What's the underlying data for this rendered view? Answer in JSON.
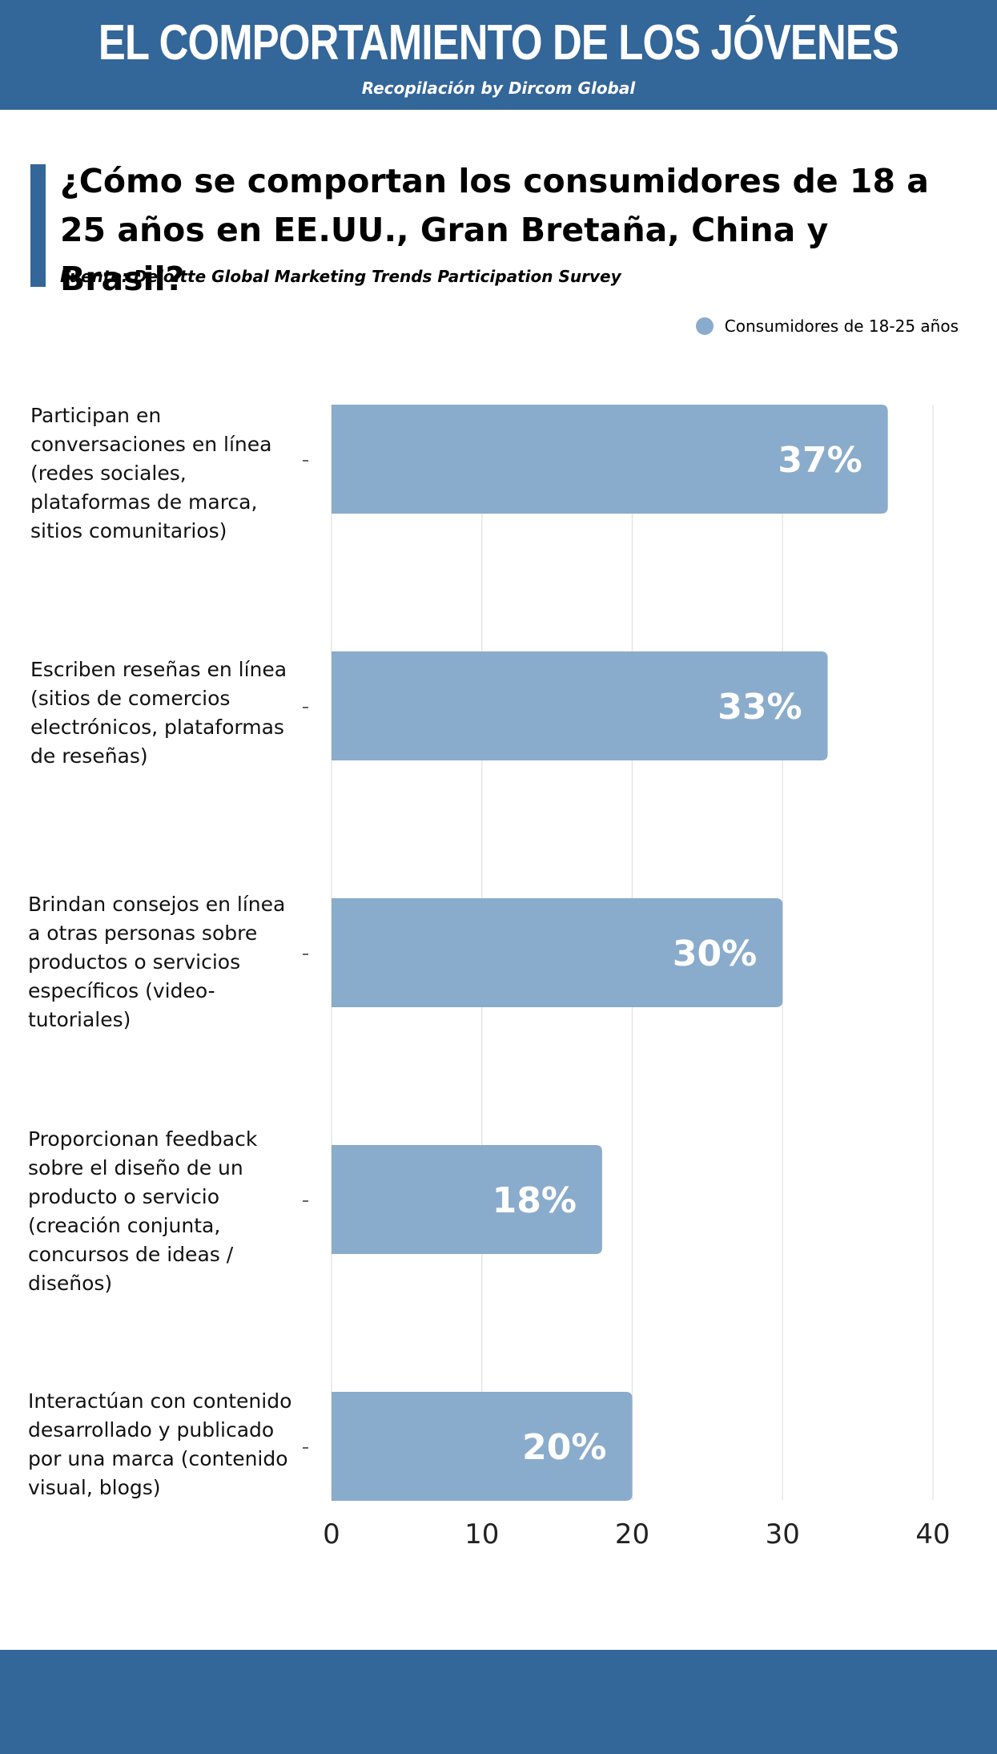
{
  "header": {
    "title": "EL COMPORTAMIENTO DE LOS JÓVENES",
    "subtitle": "Recopilación by Dircom Global"
  },
  "question": "¿Cómo se comportan los consumidores de 18 a 25 años en EE.UU., Gran Bretaña, China y Brasil?",
  "source": "Fuente: Deloitte Global Marketing Trends Participation Survey",
  "colors": {
    "header_bg": "#336699",
    "bar": "#8aaccc",
    "bar_label": "#ffffff",
    "grid": "#e6e6e6"
  },
  "chart_data": {
    "type": "bar",
    "orientation": "horizontal",
    "categories": [
      "Participan en conversaciones en línea (redes sociales, plataformas de marca, sitios comunitarios)",
      "Escriben reseñas en línea (sitios de comercios electrónicos, plataformas de reseñas)",
      "Brindan consejos en línea a otras personas sobre productos o servicios específicos (video-tutoriales)",
      "Proporcionan feedback sobre el diseño de un producto o servicio (creación conjunta, concursos de ideas / diseños)",
      "Interactúan con contenido desarrollado y publicado por una marca (contenido visual, blogs)"
    ],
    "series": [
      {
        "name": "Consumidores de 18-25 años",
        "values": [
          37,
          33,
          30,
          18,
          20
        ]
      }
    ],
    "data_labels": [
      "37%",
      "33%",
      "30%",
      "18%",
      "20%"
    ],
    "xlim": [
      0,
      40
    ],
    "xticks": [
      0,
      10,
      20,
      30,
      40
    ],
    "grid": true,
    "legend_position": "top-right"
  }
}
